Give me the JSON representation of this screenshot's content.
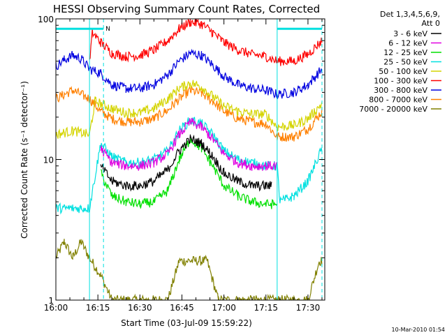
{
  "chart_data": {
    "type": "line",
    "title": "HESSI Observing Summary Count Rates, Corrected",
    "xlabel": "Start Time (03-Jul-09 15:59:22)",
    "ylabel": "Corrected Count Rate (s⁻¹ detector⁻¹)",
    "y_scale": "log",
    "ylim": [
      1,
      100
    ],
    "xlim": [
      "16:00",
      "17:36"
    ],
    "x_tick_labels": [
      "16:00",
      "16:15",
      "16:30",
      "16:45",
      "17:00",
      "17:15",
      "17:30"
    ],
    "y_tick_labels": [
      "1",
      "10",
      "100"
    ],
    "legend": {
      "header_line1": "Det 1,3,4,5,6,9,",
      "header_line2": "Att 0",
      "placement": "outside-right"
    },
    "markers": [
      {
        "label": "N",
        "start": "16:00",
        "end": "16:17",
        "level": 85,
        "color": "#00e0e0"
      },
      {
        "label": "",
        "start": "17:19",
        "end": "17:35",
        "level": 85,
        "color": "#00e0e0"
      }
    ],
    "vertical_lines": [
      {
        "time": "16:12",
        "style": "solid",
        "color": "#00e0e0"
      },
      {
        "time": "16:17",
        "style": "dashed",
        "color": "#00e0e0"
      },
      {
        "time": "17:19",
        "style": "solid",
        "color": "#00e0e0"
      },
      {
        "time": "17:35",
        "style": "dashed",
        "color": "#00e0e0"
      }
    ],
    "series": [
      {
        "name": "3 - 6 keV",
        "color": "#000000",
        "x": [
          "16:00",
          "16:03",
          "16:06",
          "16:09",
          "16:12",
          "16:16",
          "16:20",
          "16:25",
          "16:30",
          "16:35",
          "16:40",
          "16:44",
          "16:48",
          "16:52",
          "16:56",
          "17:00",
          "17:05",
          "17:10",
          "17:15",
          "17:17"
        ],
        "y": [
          null,
          null,
          null,
          null,
          null,
          9.0,
          7.0,
          6.5,
          6.5,
          7.0,
          8.5,
          11.5,
          14.0,
          13.0,
          10.5,
          8.0,
          7.0,
          6.5,
          6.5,
          6.5
        ]
      },
      {
        "name": "6 - 12 keV",
        "color": "#e000e0",
        "x": [
          "16:00",
          "16:03",
          "16:06",
          "16:09",
          "16:12",
          "16:16",
          "16:20",
          "16:25",
          "16:30",
          "16:35",
          "16:40",
          "16:44",
          "16:48",
          "16:52",
          "16:56",
          "17:00",
          "17:05",
          "17:10",
          "17:15",
          "17:19"
        ],
        "y": [
          null,
          null,
          null,
          null,
          null,
          12.0,
          9.5,
          9.0,
          9.0,
          9.5,
          11.0,
          15.0,
          18.5,
          17.0,
          14.0,
          11.0,
          9.5,
          9.0,
          9.0,
          9.0
        ]
      },
      {
        "name": "12 - 25 keV",
        "color": "#00e000",
        "x": [
          "16:00",
          "16:03",
          "16:06",
          "16:09",
          "16:12",
          "16:16",
          "16:20",
          "16:25",
          "16:30",
          "16:35",
          "16:40",
          "16:44",
          "16:48",
          "16:52",
          "16:56",
          "17:00",
          "17:05",
          "17:10",
          "17:15",
          "17:19"
        ],
        "y": [
          null,
          null,
          null,
          null,
          null,
          8.0,
          5.5,
          5.0,
          4.8,
          5.0,
          6.0,
          10.0,
          14.0,
          12.0,
          9.0,
          6.5,
          5.5,
          5.0,
          4.8,
          4.8
        ]
      },
      {
        "name": "25 - 50 keV",
        "color": "#00e0e0",
        "x": [
          "16:00",
          "16:03",
          "16:06",
          "16:09",
          "16:12",
          "16:16",
          "16:20",
          "16:25",
          "16:30",
          "16:35",
          "16:40",
          "16:44",
          "16:48",
          "16:52",
          "16:56",
          "17:00",
          "17:05",
          "17:10",
          "17:15",
          "17:19",
          "17:20",
          "17:25",
          "17:30",
          "17:35"
        ],
        "y": [
          4.5,
          4.5,
          4.5,
          4.5,
          4.5,
          13.0,
          10.5,
          9.5,
          9.5,
          10.0,
          11.5,
          16.0,
          19.0,
          18.0,
          15.0,
          11.5,
          10.0,
          9.5,
          9.0,
          9.0,
          5.0,
          5.5,
          7.0,
          12.0
        ]
      },
      {
        "name": "50 - 100 keV",
        "color": "#d4d400",
        "x": [
          "16:00",
          "16:03",
          "16:06",
          "16:09",
          "16:12",
          "16:14",
          "16:20",
          "16:25",
          "16:30",
          "16:35",
          "16:40",
          "16:44",
          "16:48",
          "16:52",
          "16:56",
          "17:00",
          "17:05",
          "17:10",
          "17:15",
          "17:19",
          "17:25",
          "17:30",
          "17:35"
        ],
        "y": [
          15.0,
          15.5,
          16.0,
          15.5,
          15.0,
          26.0,
          23.0,
          21.5,
          21.5,
          23.0,
          27.0,
          32.0,
          35.0,
          33.0,
          28.0,
          24.0,
          22.0,
          21.0,
          21.0,
          17.0,
          17.5,
          19.5,
          25.0
        ]
      },
      {
        "name": "100 - 300 keV",
        "color": "#ff0000",
        "x": [
          "16:12",
          "16:13",
          "16:16",
          "16:20",
          "16:25",
          "16:30",
          "16:35",
          "16:40",
          "16:44",
          "16:48",
          "16:52",
          "16:56",
          "17:00",
          "17:05",
          "17:10",
          "17:15",
          "17:19",
          "17:25",
          "17:30",
          "17:35"
        ],
        "y": [
          48,
          80,
          68,
          57,
          54,
          55,
          60,
          70,
          85,
          95,
          92,
          80,
          68,
          60,
          56,
          54,
          50,
          50,
          56,
          70
        ]
      },
      {
        "name": "300 - 800 keV",
        "color": "#0000e0",
        "x": [
          "16:00",
          "16:03",
          "16:06",
          "16:09",
          "16:12",
          "16:16",
          "16:20",
          "16:25",
          "16:30",
          "16:35",
          "16:40",
          "16:44",
          "16:48",
          "16:52",
          "16:56",
          "17:00",
          "17:05",
          "17:10",
          "17:15",
          "17:19",
          "17:25",
          "17:30",
          "17:35"
        ],
        "y": [
          46,
          51,
          55,
          52,
          44,
          41,
          34,
          32,
          32,
          34,
          40,
          50,
          57,
          55,
          47,
          39,
          34,
          32,
          31,
          29,
          30,
          34,
          44
        ]
      },
      {
        "name": "800 - 7000 keV",
        "color": "#ff8000",
        "x": [
          "16:00",
          "16:03",
          "16:06",
          "16:09",
          "16:12",
          "16:16",
          "16:20",
          "16:25",
          "16:30",
          "16:35",
          "16:40",
          "16:44",
          "16:48",
          "16:52",
          "16:56",
          "17:00",
          "17:05",
          "17:10",
          "17:15",
          "17:19",
          "17:25",
          "17:30",
          "17:35"
        ],
        "y": [
          27,
          29,
          31,
          29,
          27,
          22,
          19.5,
          18.5,
          18.5,
          19.5,
          22.5,
          27,
          31,
          29.5,
          26,
          22,
          19.5,
          18.5,
          18,
          14.5,
          14.5,
          16.5,
          22
        ]
      },
      {
        "name": "7000 - 20000 keV",
        "color": "#808000",
        "x": [
          "16:00",
          "16:03",
          "16:06",
          "16:09",
          "16:12",
          "16:16",
          "16:20",
          "16:30",
          "16:40",
          "16:44",
          "16:48",
          "16:52",
          "16:54",
          "16:58",
          "17:10",
          "17:20",
          "17:30",
          "17:34",
          "17:35"
        ],
        "y": [
          2.0,
          2.6,
          2.0,
          2.6,
          2.0,
          1.5,
          1.0,
          1.0,
          1.0,
          1.9,
          1.9,
          1.9,
          1.9,
          1.0,
          1.0,
          1.0,
          1.0,
          1.9,
          1.9
        ]
      }
    ]
  },
  "footer": {
    "date_stamp": "10-Mar-2010 01:54"
  }
}
